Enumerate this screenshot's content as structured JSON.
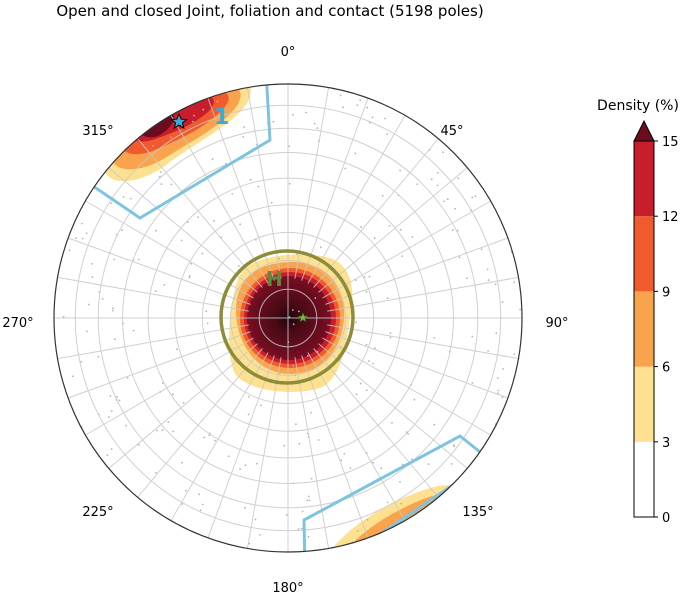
{
  "chart_data": {
    "type": "stereonet-density",
    "title": "Open and closed Joint, foliation and contact (5198 poles)",
    "azimuth_labels": [
      {
        "text": "0°",
        "azimuth": 0
      },
      {
        "text": "45°",
        "azimuth": 45
      },
      {
        "text": "90°",
        "azimuth": 90
      },
      {
        "text": "135°",
        "azimuth": 135
      },
      {
        "text": "180°",
        "azimuth": 180
      },
      {
        "text": "225°",
        "azimuth": 225
      },
      {
        "text": "270°",
        "azimuth": 270
      },
      {
        "text": "315°",
        "azimuth": 315
      }
    ],
    "grid": true,
    "colorbar": {
      "title": "Density (%)",
      "ticks": [
        "0",
        "3",
        "6",
        "9",
        "12",
        "15"
      ],
      "levels": [
        0,
        3,
        6,
        9,
        12,
        15
      ],
      "colors": [
        "#ffffff",
        "#fde191",
        "#f9a44c",
        "#ef5b2e",
        "#c81e2b",
        "#6b0c1f"
      ],
      "extend": "max"
    },
    "clusters": [
      {
        "label": "H",
        "trend": 110,
        "plunge": 88,
        "peak_density": 15,
        "color": "#5a8a3a",
        "window_color": "#8c8c3a"
      },
      {
        "label": "1",
        "trend": 145,
        "plunge": 18,
        "peak_density": 15,
        "color": "#3fa9d6",
        "window_color": "#7ec3e0"
      },
      {
        "label": "",
        "trend": 325,
        "plunge": 18,
        "peak_density": 15,
        "window_color": "#7ec3e0"
      }
    ]
  }
}
